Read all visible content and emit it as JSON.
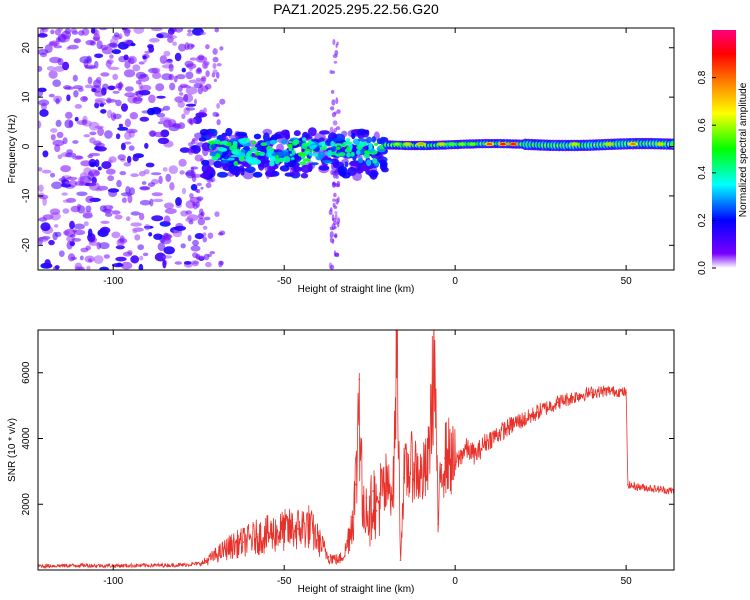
{
  "figure_title": "PAZ1.2025.295.22.56.G20",
  "chart_data": [
    {
      "type": "heatmap",
      "title": "PAZ1.2025.295.22.56.G20",
      "xlabel": "Height of straight line (km)",
      "ylabel": "Frequency (Hz)",
      "xlim": [
        -122,
        64
      ],
      "ylim": [
        -25,
        24
      ],
      "x_ticks": [
        -100,
        -50,
        0,
        50
      ],
      "y_ticks": [
        -20,
        -10,
        0,
        10,
        20
      ],
      "x_tick_labels": [
        "-100",
        "-50",
        "0",
        "50"
      ],
      "y_tick_labels": [
        "-20",
        "-10",
        "0",
        "10",
        "20"
      ],
      "colorbar": {
        "label": "Normalized spectral amplitude",
        "range": [
          0.0,
          1.0
        ],
        "ticks": [
          0.0,
          0.2,
          0.4,
          0.6,
          0.8
        ],
        "tick_labels": [
          "0.0",
          "0.2",
          "0.4",
          "0.6",
          "0.8"
        ],
        "colormap": [
          "#ffffff",
          "#7a00ff",
          "#0000ff",
          "#00ffff",
          "#00ff00",
          "#ffff00",
          "#ff8000",
          "#ff0000",
          "#ff0080"
        ]
      },
      "description_regions": [
        {
          "x_range": [
            -122,
            -74
          ],
          "y_range": [
            -25,
            24
          ],
          "amplitude": [
            0.05,
            0.2
          ],
          "pattern": "scattered noise"
        },
        {
          "x_range": [
            -74,
            -20
          ],
          "y_range": [
            -6,
            3
          ],
          "amplitude": [
            0.1,
            0.5
          ],
          "pattern": "clustered signal"
        },
        {
          "x_range": [
            -20,
            64
          ],
          "y_range": [
            -1,
            2
          ],
          "amplitude": [
            0.4,
            0.95
          ],
          "pattern": "narrow band near 0 Hz"
        },
        {
          "x_range": [
            -37,
            -34
          ],
          "y_range": [
            -25,
            24
          ],
          "amplitude": [
            0.03,
            0.1
          ],
          "pattern": "vertical streak"
        }
      ]
    },
    {
      "type": "line",
      "xlabel": "Height of straight line (km)",
      "ylabel": "SNR (10 * v/v)",
      "xlim": [
        -122,
        64
      ],
      "ylim": [
        0,
        7300
      ],
      "x_ticks": [
        -100,
        -50,
        0,
        50
      ],
      "y_ticks": [
        2000,
        4000,
        6000
      ],
      "x_tick_labels": [
        "-100",
        "-50",
        "0",
        "50"
      ],
      "y_tick_labels": [
        "2000",
        "4000",
        "6000"
      ],
      "color": "#e8312a",
      "series": [
        {
          "name": "SNR",
          "x": [
            -122,
            -110,
            -100,
            -90,
            -80,
            -74,
            -70,
            -66,
            -62,
            -58,
            -54,
            -50,
            -46,
            -43,
            -40,
            -37,
            -34,
            -32,
            -30,
            -29,
            -28,
            -27,
            -26,
            -25,
            -24,
            -23,
            -22,
            -20,
            -18,
            -17,
            -16,
            -15,
            -14,
            -12,
            -10,
            -8,
            -6,
            -5,
            -4,
            -3,
            -2,
            0,
            3,
            6,
            9,
            12,
            15,
            18,
            21,
            24,
            27,
            30,
            33,
            36,
            40,
            45,
            48,
            50,
            50.5,
            52,
            56,
            60,
            64
          ],
          "y": [
            120,
            140,
            130,
            140,
            150,
            200,
            450,
            700,
            850,
            1000,
            1100,
            1200,
            1250,
            1350,
            900,
            400,
            300,
            600,
            1600,
            2600,
            5800,
            1500,
            2200,
            1500,
            2400,
            1800,
            2200,
            2400,
            2600,
            7200,
            300,
            2800,
            3000,
            3200,
            2800,
            3100,
            6500,
            1400,
            3200,
            3400,
            3500,
            3200,
            3700,
            3500,
            3900,
            4100,
            4300,
            4500,
            4600,
            4800,
            4950,
            5100,
            5200,
            5300,
            5400,
            5450,
            5420,
            5400,
            2600,
            2550,
            2500,
            2450,
            2400
          ]
        }
      ]
    }
  ]
}
